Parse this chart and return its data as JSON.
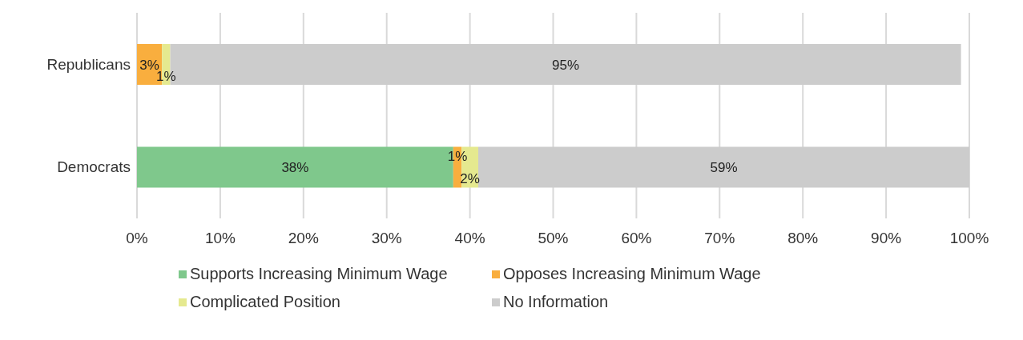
{
  "chart_data": {
    "type": "bar",
    "orientation": "horizontal",
    "stacked": true,
    "categories": [
      "Republicans",
      "Democrats"
    ],
    "series": [
      {
        "name": "Supports Increasing Minimum Wage",
        "color": "#7fc88c",
        "values": [
          0,
          38
        ],
        "value_labels": [
          null,
          "38%"
        ]
      },
      {
        "name": "Opposes Increasing Minimum Wage",
        "color": "#f9ae3e",
        "values": [
          3,
          1
        ],
        "value_labels": [
          "3%",
          "1%"
        ]
      },
      {
        "name": "Complicated Position",
        "color": "#e5e98f",
        "values": [
          1,
          2
        ],
        "value_labels": [
          "1%",
          "2%"
        ]
      },
      {
        "name": "No Information",
        "color": "#cccccc",
        "values": [
          95,
          59
        ],
        "value_labels": [
          "95%",
          "59%"
        ]
      }
    ],
    "xlim": [
      0,
      100
    ],
    "xticks": [
      {
        "value": 0,
        "label": "0%"
      },
      {
        "value": 10,
        "label": "10%"
      },
      {
        "value": 20,
        "label": "20%"
      },
      {
        "value": 30,
        "label": "30%"
      },
      {
        "value": 40,
        "label": "40%"
      },
      {
        "value": 50,
        "label": "50%"
      },
      {
        "value": 60,
        "label": "60%"
      },
      {
        "value": 70,
        "label": "70%"
      },
      {
        "value": 80,
        "label": "80%"
      },
      {
        "value": 90,
        "label": "90%"
      },
      {
        "value": 100,
        "label": "100%"
      }
    ],
    "grid": "x",
    "legend": "bottom"
  }
}
